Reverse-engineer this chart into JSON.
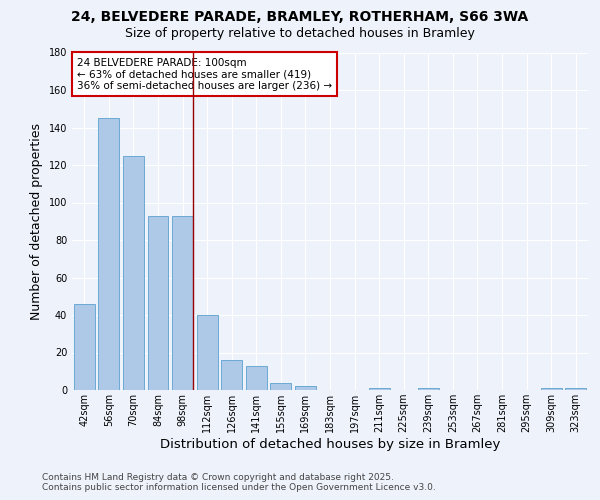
{
  "title_line1": "24, BELVEDERE PARADE, BRAMLEY, ROTHERHAM, S66 3WA",
  "title_line2": "Size of property relative to detached houses in Bramley",
  "xlabel": "Distribution of detached houses by size in Bramley",
  "ylabel": "Number of detached properties",
  "categories": [
    "42sqm",
    "56sqm",
    "70sqm",
    "84sqm",
    "98sqm",
    "112sqm",
    "126sqm",
    "141sqm",
    "155sqm",
    "169sqm",
    "183sqm",
    "197sqm",
    "211sqm",
    "225sqm",
    "239sqm",
    "253sqm",
    "267sqm",
    "281sqm",
    "295sqm",
    "309sqm",
    "323sqm"
  ],
  "values": [
    46,
    145,
    125,
    93,
    93,
    40,
    16,
    13,
    4,
    2,
    0,
    0,
    1,
    0,
    1,
    0,
    0,
    0,
    0,
    1,
    1
  ],
  "bar_color": "#aec8e8",
  "bar_edge_color": "#6aaad4",
  "red_line_index": 4,
  "annotation_line1": "24 BELVEDERE PARADE: 100sqm",
  "annotation_line2": "← 63% of detached houses are smaller (419)",
  "annotation_line3": "36% of semi-detached houses are larger (236) →",
  "annotation_box_color": "white",
  "annotation_box_edge_color": "#cc0000",
  "ylim": [
    0,
    180
  ],
  "yticks": [
    0,
    20,
    40,
    60,
    80,
    100,
    120,
    140,
    160,
    180
  ],
  "footer_line1": "Contains HM Land Registry data © Crown copyright and database right 2025.",
  "footer_line2": "Contains public sector information licensed under the Open Government Licence v3.0.",
  "background_color": "#eef2fb",
  "grid_color": "#ffffff",
  "title_fontsize": 10,
  "subtitle_fontsize": 9,
  "axis_label_fontsize": 9,
  "tick_fontsize": 7,
  "annotation_fontsize": 7.5,
  "footer_fontsize": 6.5
}
